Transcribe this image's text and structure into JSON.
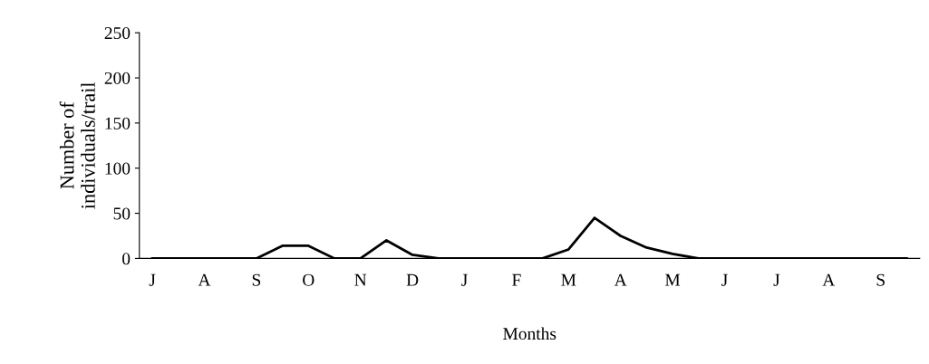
{
  "chart_data": {
    "type": "line",
    "xlabel": "Months",
    "ylabel": "Number of\nindividuals/trail",
    "categories": [
      "J",
      null,
      "A",
      null,
      "S",
      null,
      "O",
      null,
      "N",
      null,
      "D",
      null,
      "J",
      null,
      "F",
      null,
      "M",
      null,
      "A",
      null,
      "M",
      null,
      "J",
      null,
      "J",
      null,
      "A",
      null,
      "S",
      null
    ],
    "series": [
      {
        "color": "#000000",
        "values": [
          0,
          0,
          0,
          0,
          0,
          14,
          14,
          0,
          0,
          20,
          4,
          0,
          0,
          0,
          0,
          0,
          10,
          45,
          25,
          12,
          5,
          0,
          0,
          0,
          0,
          0,
          0,
          0,
          0,
          0
        ]
      }
    ],
    "ylim": [
      0,
      250
    ],
    "yticks": [
      0,
      50,
      100,
      150,
      200,
      250
    ],
    "grid": false,
    "marker": "none",
    "line_style": "solid"
  }
}
